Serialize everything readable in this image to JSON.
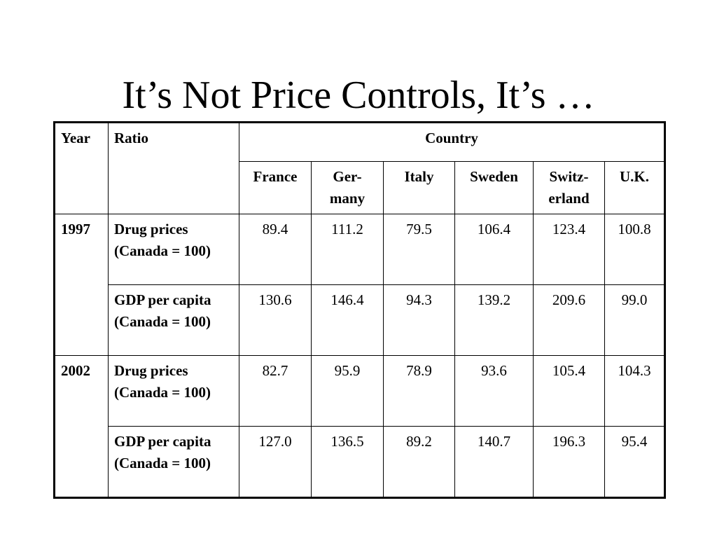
{
  "slide": {
    "title": "It’s Not Price Controls, It’s …"
  },
  "table": {
    "headers": {
      "year": "Year",
      "ratio": "Ratio",
      "country": "Country"
    },
    "countries": [
      "France",
      "Ger-many",
      "Italy",
      "Sweden",
      "Switz-erland",
      "U.K."
    ],
    "rows": [
      {
        "year": "1997",
        "ratio": "Drug prices (Canada = 100)",
        "values": [
          "89.4",
          "111.2",
          "79.5",
          "106.4",
          "123.4",
          "100.8"
        ]
      },
      {
        "year": "",
        "ratio": "GDP per capita (Canada = 100)",
        "values": [
          "130.6",
          "146.4",
          "94.3",
          "139.2",
          "209.6",
          "99.0"
        ]
      },
      {
        "year": "2002",
        "ratio": "Drug prices (Canada = 100)",
        "values": [
          "82.7",
          "95.9",
          "78.9",
          "93.6",
          "105.4",
          "104.3"
        ]
      },
      {
        "year": "",
        "ratio": "GDP per capita (Canada = 100)",
        "values": [
          "127.0",
          "136.5",
          "89.2",
          "140.7",
          "196.3",
          "95.4"
        ]
      }
    ]
  }
}
